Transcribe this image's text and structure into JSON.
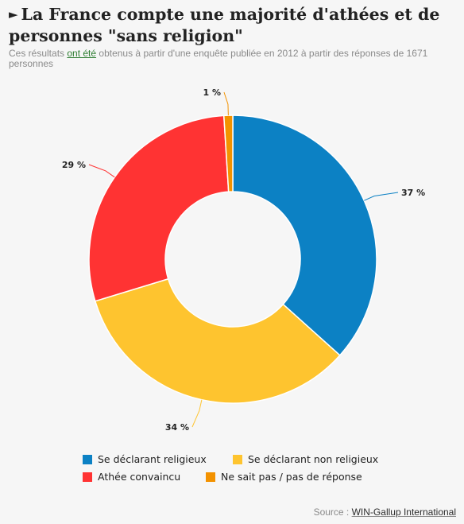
{
  "header": {
    "arrow": "►",
    "title": "La France compte une majorité d'athées et de personnes \"sans religion\"",
    "subtitle_before": "Ces résultats ",
    "subtitle_link": "ont été",
    "subtitle_after": " obtenus à partir d'une enquête publiée en 2012 à partir des réponses de 1671 personnes"
  },
  "chart_data": {
    "type": "pie",
    "donut": true,
    "start": "top",
    "direction": "clockwise",
    "slices": [
      {
        "name": "Se déclarant religieux",
        "value": 37,
        "label": "37 %",
        "color": "#0c81c4"
      },
      {
        "name": "Se déclarant non religieux",
        "value": 34,
        "label": "34 %",
        "color": "#fec42f"
      },
      {
        "name": "Athée convaincu",
        "value": 29,
        "label": "29 %",
        "color": "#ff3333"
      },
      {
        "name": "Ne sait pas / pas de réponse",
        "value": 1,
        "label": "1 %",
        "color": "#f39200"
      }
    ],
    "legend_placement": "bottom"
  },
  "footer": {
    "source_prefix": "Source : ",
    "source_name": "WIN-Gallup International"
  }
}
